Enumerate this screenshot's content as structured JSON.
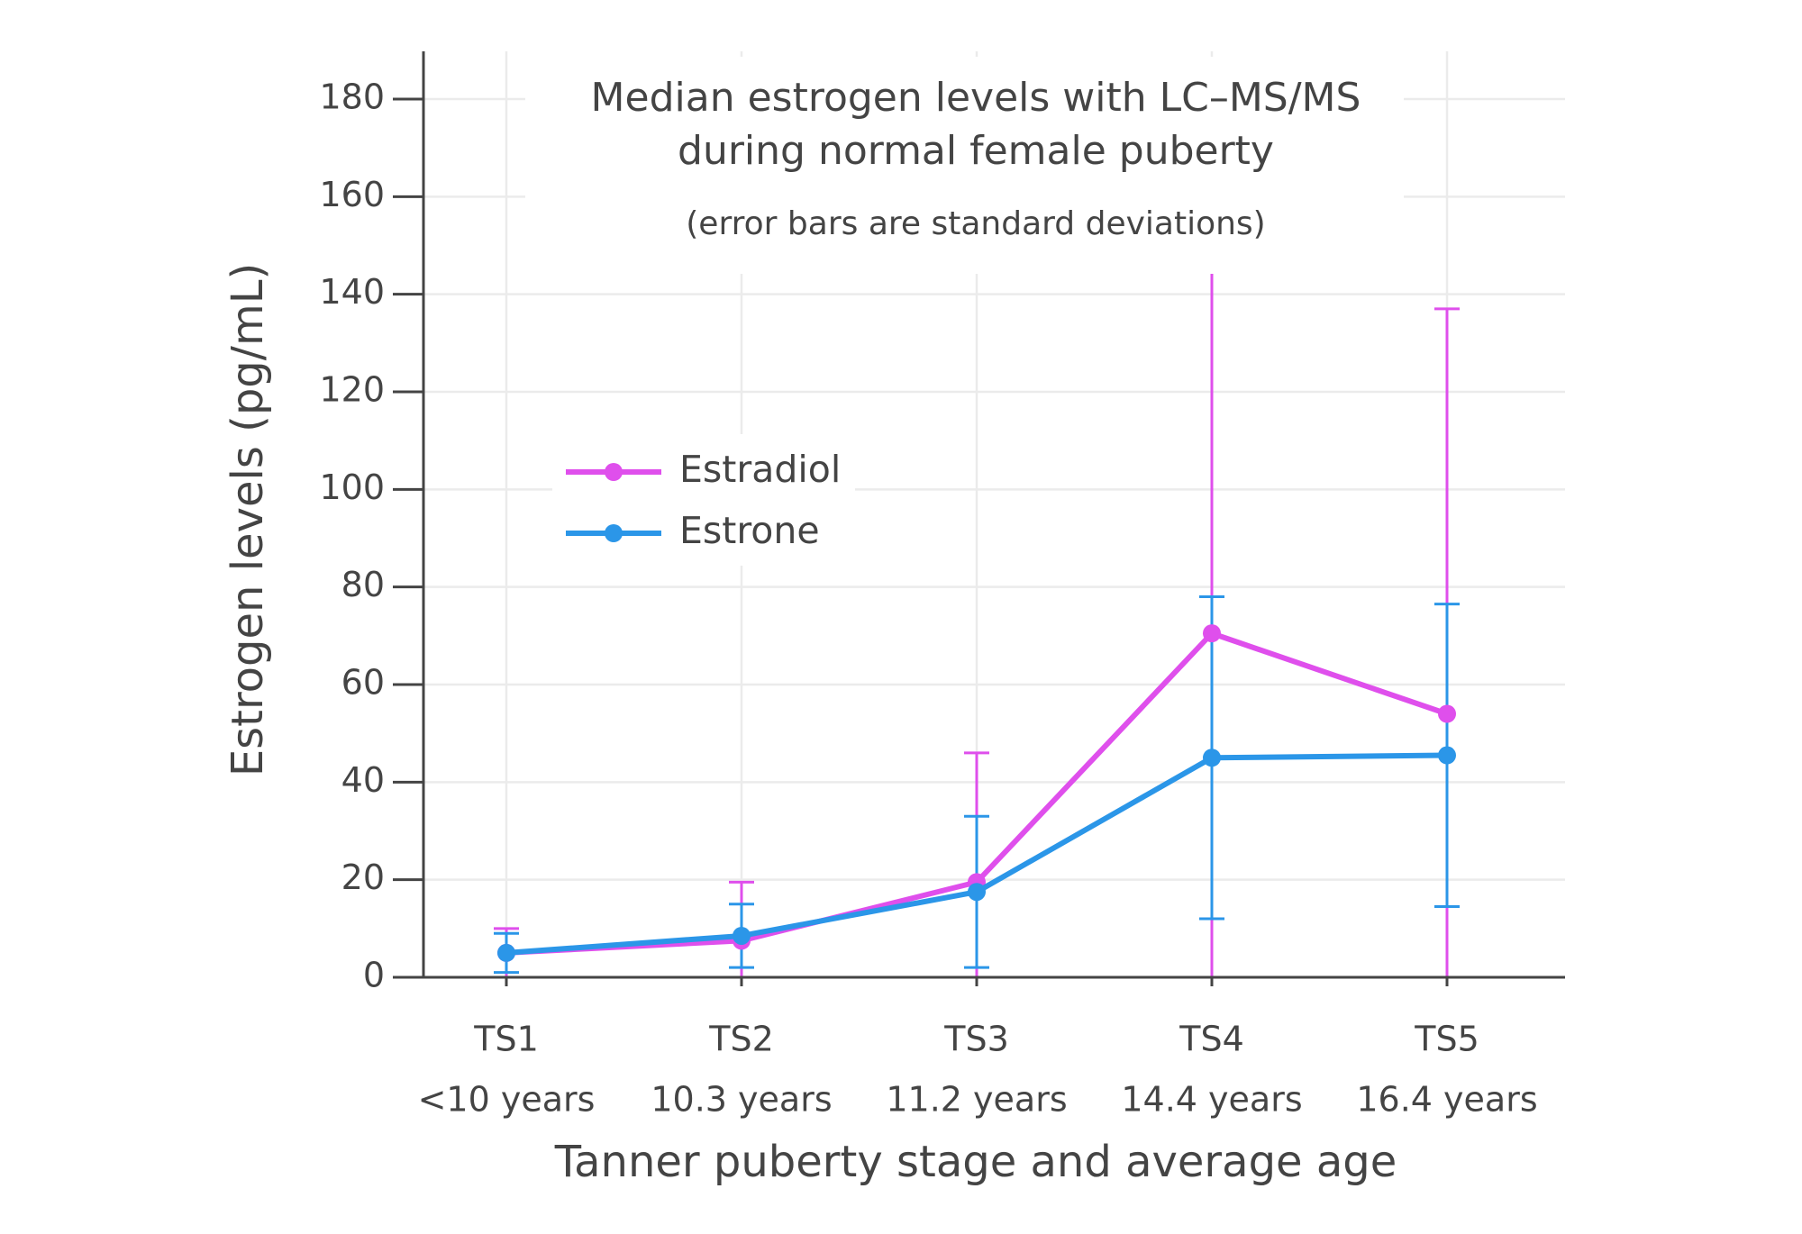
{
  "chart_data": {
    "type": "line",
    "title": [
      "Median estrogen levels with LC–MS/MS",
      "during normal female puberty"
    ],
    "subtitle": "(error bars are standard deviations)",
    "x_label": "Tanner puberty stage and average age",
    "y_label": "Estrogen levels (pg/mL)",
    "categories": [
      "TS1",
      "TS2",
      "TS3",
      "TS4",
      "TS5"
    ],
    "category_sublabels": [
      "<10 years",
      "10.3 years",
      "11.2 years",
      "14.4 years",
      "16.4 years"
    ],
    "series": [
      {
        "name": "Estradiol",
        "color": "#df4fec",
        "values": [
          5,
          7.5,
          19.5,
          70.5,
          54
        ],
        "errors": [
          5,
          12,
          26.5,
          78,
          83
        ]
      },
      {
        "name": "Estrone",
        "color": "#2b96e8",
        "values": [
          5,
          8.5,
          17.5,
          45,
          45.5
        ],
        "errors": [
          4,
          6.5,
          15.5,
          33,
          31
        ]
      }
    ],
    "ylim": [
      0,
      180
    ],
    "yticks": [
      0,
      20,
      40,
      60,
      80,
      100,
      120,
      140,
      160,
      180
    ],
    "grid": true
  }
}
